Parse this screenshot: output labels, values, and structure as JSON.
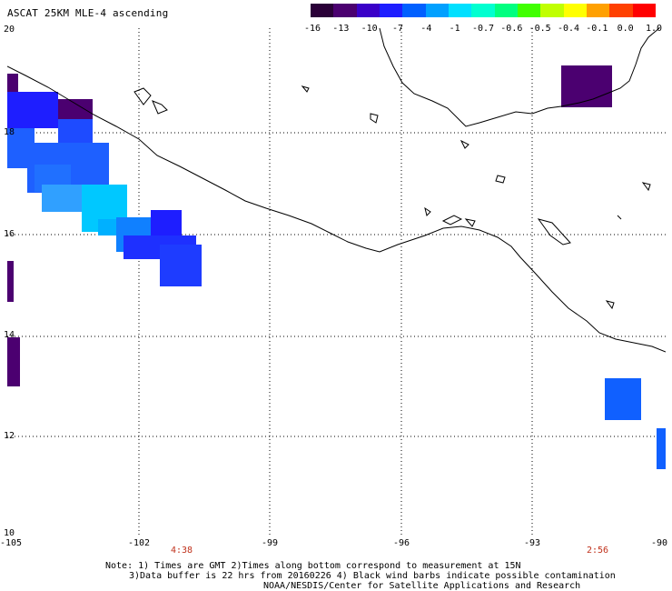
{
  "title": "ASCAT 25KM MLE-4 ascending",
  "colorbar": {
    "colors": [
      "#2a0038",
      "#4b0070",
      "#3a00c8",
      "#1e1eff",
      "#0060ff",
      "#00a0ff",
      "#00e0ff",
      "#00ffd0",
      "#00ff80",
      "#40ff00",
      "#c0ff00",
      "#ffff00",
      "#ffa000",
      "#ff4000",
      "#ff0000"
    ],
    "labels": [
      "-16",
      "-13",
      "-10",
      "-7",
      "-4",
      "-1",
      "-0.7",
      "-0.6",
      "-0.5",
      "-0.4",
      "-0.1",
      "0.0",
      "1.0"
    ]
  },
  "map": {
    "lat_range": [
      10,
      20
    ],
    "lon_range": [
      -105,
      -90
    ],
    "lat_labels": [
      "20",
      "18",
      "16",
      "14",
      "12",
      "10"
    ],
    "lon_labels": [
      "-105",
      "-102",
      "-99",
      "-96",
      "-93",
      "-90"
    ],
    "grid": "dotted",
    "land_outline_color": "#000000"
  },
  "times": [
    "4:38",
    "2:56"
  ],
  "notes": {
    "line1": "Note: 1) Times are GMT 2)Times along bottom correspond to measurement at 15N",
    "line2": "3)Data buffer is 22 hrs from 20160226 4) Black wind barbs indicate possible contamination",
    "line3": "NOAA/NESDIS/Center for Satellite Applications and Research"
  }
}
